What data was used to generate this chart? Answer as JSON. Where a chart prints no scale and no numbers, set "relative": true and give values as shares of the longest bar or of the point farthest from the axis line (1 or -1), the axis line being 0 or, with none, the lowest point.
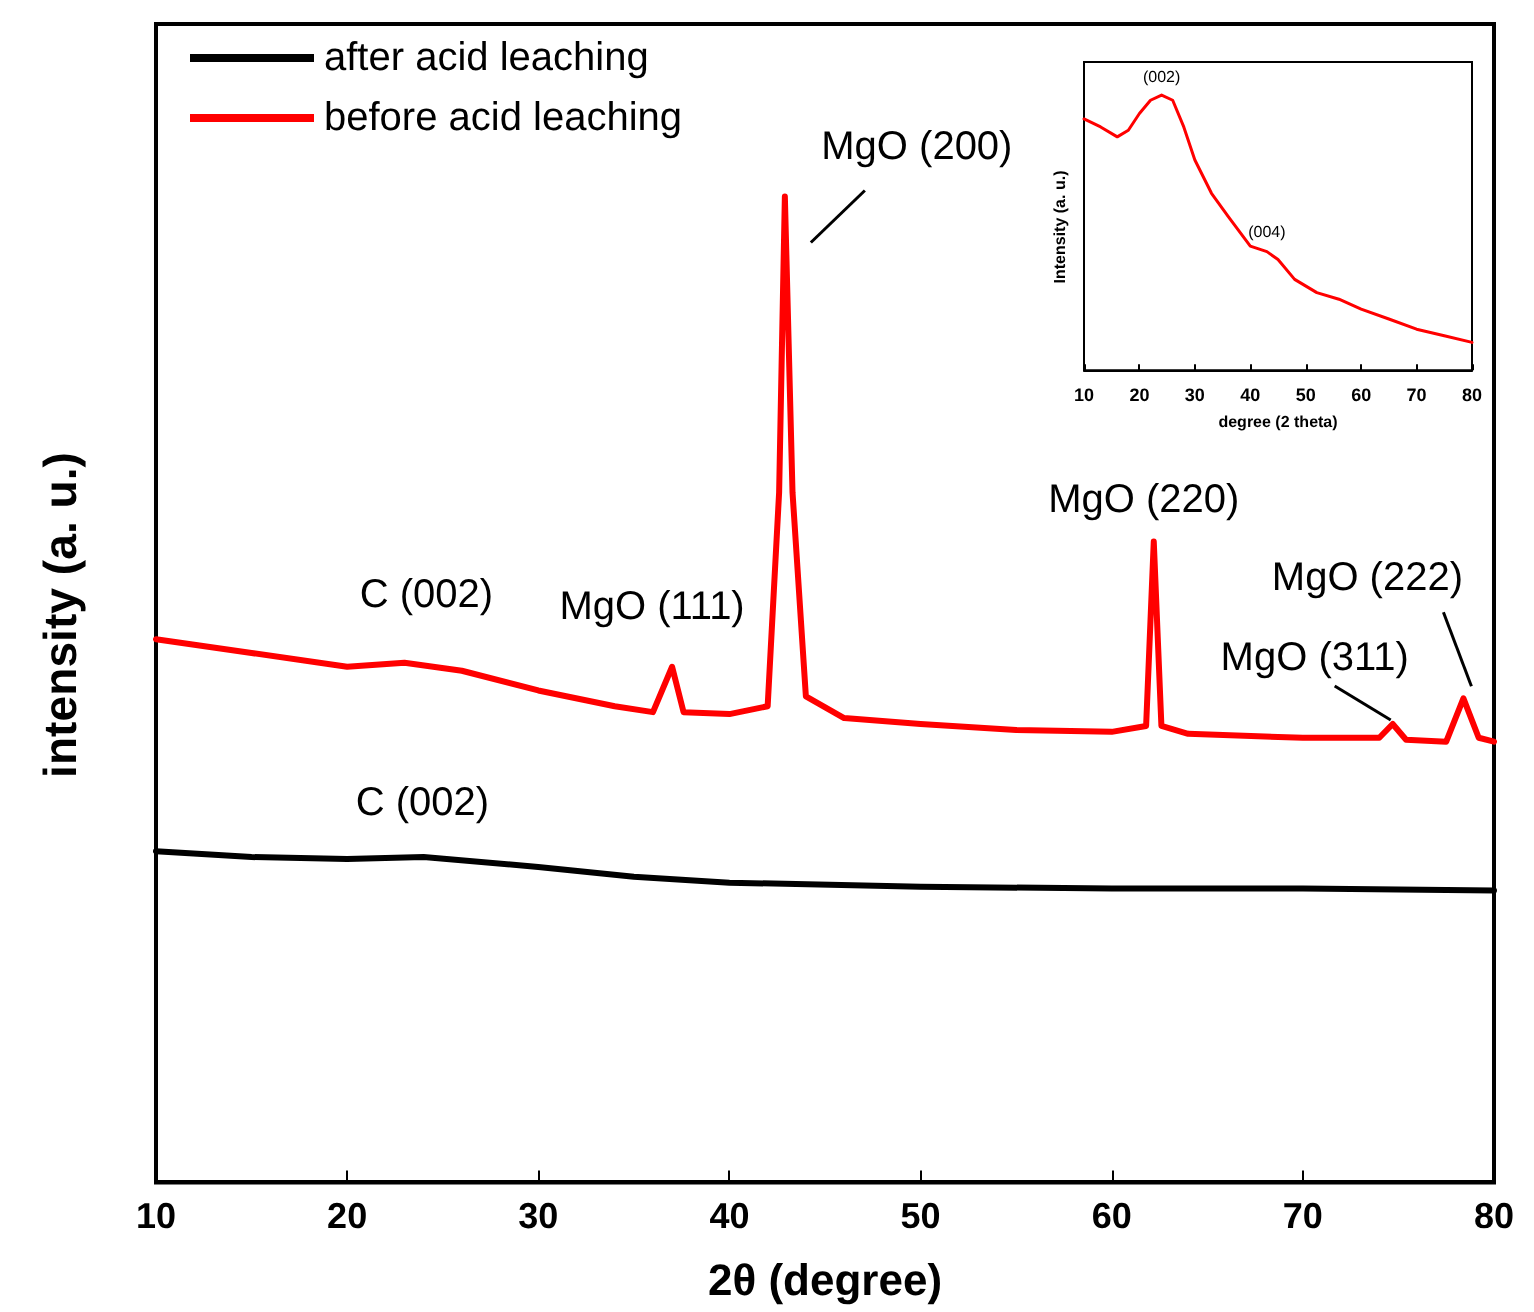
{
  "chart_data": [
    {
      "type": "line",
      "xlabel": "2θ (degree)",
      "ylabel": "intensity (a. u.)",
      "relative": true,
      "xlim": [
        10,
        80
      ],
      "xticks": [
        10,
        20,
        30,
        40,
        50,
        60,
        70,
        80
      ],
      "tick_labels": "x",
      "grid": false,
      "legend": "top left",
      "marker": "none",
      "line_style": "solid",
      "series": [
        {
          "name": "after acid leaching",
          "color": "#000000",
          "x": [
            10,
            15,
            20,
            24,
            30,
            35,
            40,
            50,
            60,
            70,
            80
          ],
          "values": [
            0.336,
            0.33,
            0.328,
            0.33,
            0.32,
            0.31,
            0.304,
            0.3,
            0.298,
            0.298,
            0.296
          ]
        },
        {
          "name": "before acid leaching",
          "color": "#ff0000",
          "x": [
            10,
            15,
            20,
            23,
            26,
            30,
            34,
            36,
            37,
            37.6,
            40,
            42,
            42.6,
            42.9,
            43.3,
            44,
            46,
            50,
            55,
            60,
            61.8,
            62.2,
            62.6,
            64,
            70,
            74,
            74.7,
            75.4,
            77.5,
            78.4,
            79.2,
            80
          ],
          "values": [
            0.551,
            0.537,
            0.523,
            0.527,
            0.519,
            0.499,
            0.483,
            0.477,
            0.523,
            0.477,
            0.475,
            0.483,
            0.7,
            1.0,
            0.7,
            0.493,
            0.471,
            0.465,
            0.459,
            0.457,
            0.463,
            0.65,
            0.463,
            0.455,
            0.451,
            0.451,
            0.465,
            0.449,
            0.447,
            0.491,
            0.451,
            0.447
          ]
        }
      ],
      "annotations": [
        {
          "text": "C (002)",
          "x": 23,
          "y": 0.527
        },
        {
          "text": "MgO (111)",
          "x": 37,
          "y": 0.523
        },
        {
          "text": "MgO (200)",
          "x": 42.9,
          "y": 1.0
        },
        {
          "text": "MgO (220)",
          "x": 62.2,
          "y": 0.65
        },
        {
          "text": "MgO (311)",
          "x": 74.7,
          "y": 0.465
        },
        {
          "text": "MgO (222)",
          "x": 78.4,
          "y": 0.491
        },
        {
          "text": "C (002)",
          "x": 23,
          "y": 0.33
        }
      ]
    },
    {
      "type": "line",
      "xlabel": "degree (2 theta)",
      "ylabel": "Intensity (a. u.)",
      "relative": true,
      "xlim": [
        10,
        80
      ],
      "xticks": [
        10,
        20,
        30,
        40,
        50,
        60,
        70,
        80
      ],
      "tick_labels": "x",
      "grid": false,
      "legend": false,
      "marker": "none",
      "line_style": "solid",
      "series": [
        {
          "color": "#ff0000",
          "x": [
            10,
            13,
            16,
            18,
            20,
            22,
            24,
            26,
            28,
            30,
            33,
            36,
            40,
            43,
            45,
            48,
            52,
            56,
            60,
            65,
            70,
            75,
            80
          ],
          "values": [
            0.913,
            0.884,
            0.848,
            0.872,
            0.933,
            0.981,
            1.0,
            0.981,
            0.884,
            0.764,
            0.643,
            0.559,
            0.451,
            0.431,
            0.402,
            0.33,
            0.282,
            0.258,
            0.222,
            0.186,
            0.149,
            0.125,
            0.101
          ]
        }
      ],
      "annotations": [
        {
          "text": "(002)",
          "x": 24,
          "y": 1.0
        },
        {
          "text": "(004)",
          "x": 43,
          "y": 0.431
        }
      ]
    }
  ]
}
